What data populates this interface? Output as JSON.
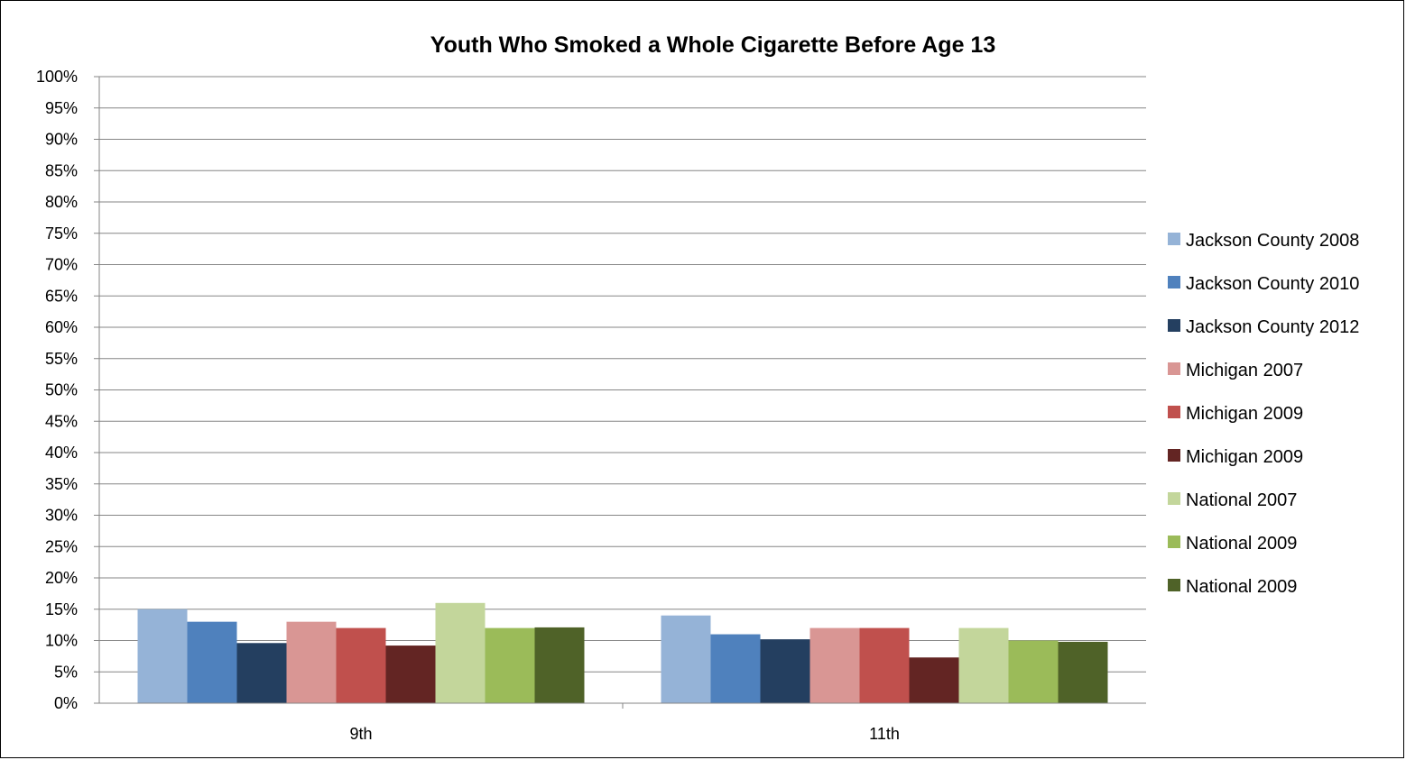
{
  "chart_data": {
    "type": "bar",
    "title": "Youth Who Smoked a Whole Cigarette Before Age 13",
    "xlabel": "",
    "ylabel": "",
    "ylim": [
      0,
      100
    ],
    "y_ticks": [
      "0%",
      "5%",
      "10%",
      "15%",
      "20%",
      "25%",
      "30%",
      "35%",
      "40%",
      "45%",
      "50%",
      "55%",
      "60%",
      "65%",
      "70%",
      "75%",
      "80%",
      "85%",
      "90%",
      "95%",
      "100%"
    ],
    "grid": true,
    "legend_position": "right",
    "categories": [
      "9th",
      "11th"
    ],
    "series": [
      {
        "name": "Jackson County 2008",
        "color": "#95B3D7",
        "values": [
          15,
          14
        ]
      },
      {
        "name": "Jackson County 2010",
        "color": "#4F81BD",
        "values": [
          13,
          11
        ]
      },
      {
        "name": "Jackson County 2012",
        "color": "#243F60",
        "values": [
          9.6,
          10.2
        ]
      },
      {
        "name": "Michigan 2007",
        "color": "#D99694",
        "values": [
          13,
          12
        ]
      },
      {
        "name": "Michigan 2009",
        "color": "#C0504D",
        "values": [
          12,
          12
        ]
      },
      {
        "name": "Michigan 2009",
        "color": "#632523",
        "values": [
          9.2,
          7.3
        ]
      },
      {
        "name": "National 2007",
        "color": "#C3D69B",
        "values": [
          16,
          12
        ]
      },
      {
        "name": "National 2009",
        "color": "#9BBB59",
        "values": [
          12,
          10
        ]
      },
      {
        "name": "National 2009",
        "color": "#4F6228",
        "values": [
          12.1,
          9.8
        ]
      }
    ]
  }
}
